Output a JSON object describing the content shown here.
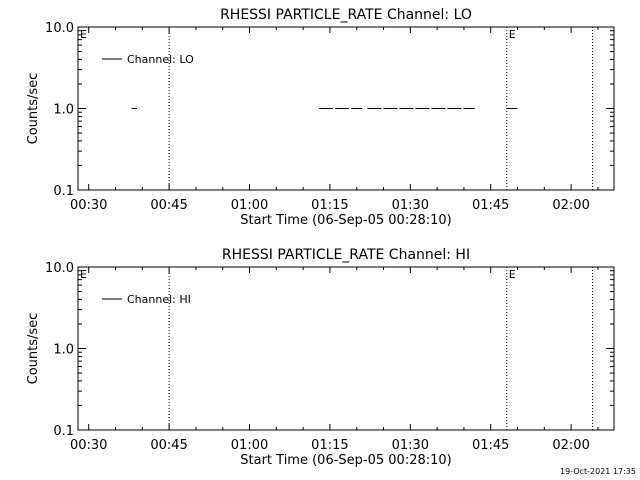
{
  "footer": {
    "timestamp": "19-Oct-2021 17:35"
  },
  "chart_data": [
    {
      "type": "line",
      "title": "RHESSI PARTICLE_RATE Channel: LO",
      "xlabel": "Start Time (06-Sep-05 00:28:10)",
      "ylabel": "Counts/sec",
      "yscale": "log",
      "ylim": [
        0.1,
        10.0
      ],
      "xlim": [
        "00:28",
        "02:08"
      ],
      "x_ticks": [
        "00:30",
        "00:45",
        "01:00",
        "01:15",
        "01:30",
        "01:45",
        "02:00"
      ],
      "y_ticks": [
        "0.1",
        "1.0",
        "10.0"
      ],
      "grid": false,
      "legend": {
        "position": "top-left",
        "entries": [
          "Channel: LO"
        ]
      },
      "vlines": [
        "00:45",
        "01:48",
        "02:04"
      ],
      "annotations": [
        {
          "text": "E",
          "x": "00:28"
        },
        {
          "text": "E",
          "x": "01:48"
        }
      ],
      "series": [
        {
          "name": "Channel: LO",
          "segments": [
            {
              "x": [
                "00:38",
                "00:39"
              ],
              "y": [
                1.0,
                1.0
              ]
            },
            {
              "x": [
                "01:13",
                "01:21"
              ],
              "y": [
                1.0,
                1.0
              ]
            },
            {
              "x": [
                "01:22",
                "01:42"
              ],
              "y": [
                1.0,
                1.0
              ]
            },
            {
              "x": [
                "01:48",
                "01:50"
              ],
              "y": [
                1.0,
                1.0
              ]
            }
          ]
        }
      ]
    },
    {
      "type": "line",
      "title": "RHESSI PARTICLE_RATE Channel: HI",
      "xlabel": "Start Time (06-Sep-05 00:28:10)",
      "ylabel": "Counts/sec",
      "yscale": "log",
      "ylim": [
        0.1,
        10.0
      ],
      "xlim": [
        "00:28",
        "02:08"
      ],
      "x_ticks": [
        "00:30",
        "00:45",
        "01:00",
        "01:15",
        "01:30",
        "01:45",
        "02:00"
      ],
      "y_ticks": [
        "0.1",
        "1.0",
        "10.0"
      ],
      "grid": false,
      "legend": {
        "position": "top-left",
        "entries": [
          "Channel: HI"
        ]
      },
      "vlines": [
        "00:45",
        "01:48",
        "02:04"
      ],
      "annotations": [
        {
          "text": "E",
          "x": "00:28"
        },
        {
          "text": "E",
          "x": "01:48"
        }
      ],
      "series": [
        {
          "name": "Channel: HI",
          "segments": []
        }
      ]
    }
  ]
}
